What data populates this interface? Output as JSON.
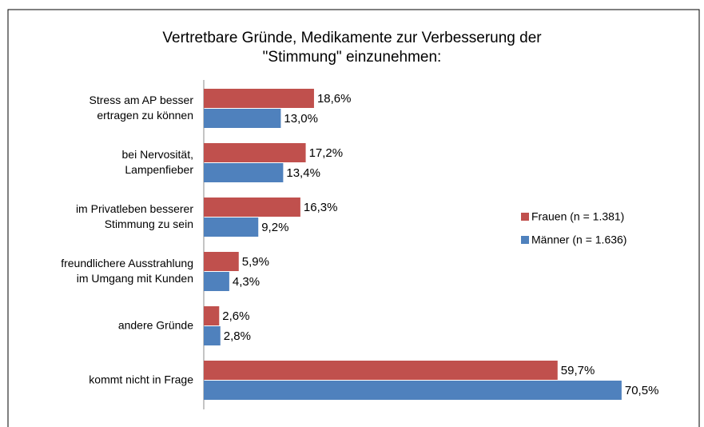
{
  "chart_data": {
    "type": "bar",
    "orientation": "horizontal",
    "title": "Vertretbare Gründe, Medikamente zur Verbesserung der\n\"Stimmung\" einzunehmen:",
    "categories": [
      "Stress am AP besser\nertragen zu können",
      "bei Nervosität,\nLampenfieber",
      "im Privatleben besserer\nStimmung zu sein",
      "freundlichere Ausstrahlung\nim Umgang mit Kunden",
      "andere Gründe",
      "kommt nicht in Frage"
    ],
    "series": [
      {
        "name": "Frauen (n = 1.381)",
        "color": "#c0504d",
        "values": [
          18.6,
          17.2,
          16.3,
          5.9,
          2.6,
          59.7
        ],
        "value_labels": [
          "18,6%",
          "17,2%",
          "16,3%",
          "5,9%",
          "2,6%",
          "59,7%"
        ]
      },
      {
        "name": "Männer  (n = 1.636)",
        "color": "#4f81bd",
        "values": [
          13.0,
          13.4,
          9.2,
          4.3,
          2.8,
          70.5
        ],
        "value_labels": [
          "13,0%",
          "13,4%",
          "9,2%",
          "4,3%",
          "2,8%",
          "70,5%"
        ]
      }
    ],
    "xlim": [
      0,
      72
    ],
    "legend": "right"
  }
}
